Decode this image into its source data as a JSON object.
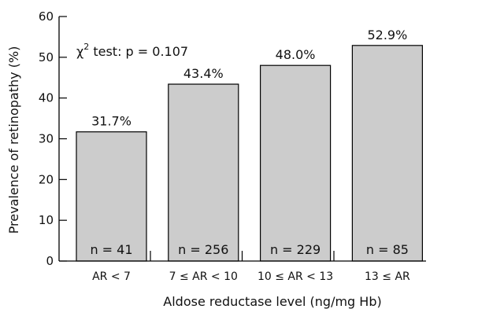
{
  "chart_data": {
    "type": "bar",
    "categories": [
      "AR < 7",
      "7 ≤ AR < 10",
      "10 ≤ AR < 13",
      "13 ≤ AR"
    ],
    "values": [
      31.7,
      43.4,
      48.0,
      52.9
    ],
    "value_labels": [
      "31.7%",
      "43.4%",
      "48.0%",
      "52.9%"
    ],
    "n_labels": [
      "n = 41",
      "n = 256",
      "n = 229",
      "n = 85"
    ],
    "xlabel": "Aldose reductase level (ng/mg Hb)",
    "ylabel": "Prevalence of retinopathy (%)",
    "ylim": [
      0,
      60
    ],
    "yticks": [
      0,
      10,
      20,
      30,
      40,
      50,
      60
    ],
    "annotation": {
      "chi": "χ",
      "sup": "2",
      "rest": " test: p = 0.107"
    },
    "bar_color": "#cccccc",
    "bar_edge_color": "#000000",
    "grid": false,
    "legend": "none"
  }
}
